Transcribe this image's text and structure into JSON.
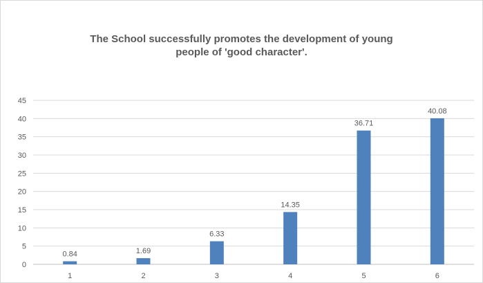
{
  "chart_data": {
    "type": "bar",
    "title_lines": [
      "The School successfully promotes the development of young",
      "people of 'good character'."
    ],
    "categories": [
      "1",
      "2",
      "3",
      "4",
      "5",
      "6"
    ],
    "values": [
      0.84,
      1.69,
      6.33,
      14.35,
      36.71,
      40.08
    ],
    "data_labels": [
      "0.84",
      "1.69",
      "6.33",
      "14.35",
      "36.71",
      "40.08"
    ],
    "ylim": [
      0,
      45
    ],
    "y_ticks": [
      "0",
      "5",
      "10",
      "15",
      "20",
      "25",
      "30",
      "35",
      "40",
      "45"
    ],
    "grid": true,
    "legend": "none",
    "bar_color": "#4f81bd",
    "grid_color": "#d9d9d9",
    "text_color": "#595959"
  }
}
